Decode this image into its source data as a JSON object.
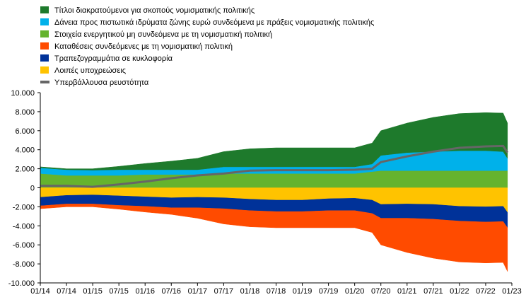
{
  "chart_data": {
    "type": "area",
    "stacked": true,
    "xlabel": "",
    "ylabel": "",
    "ylim": [
      -10000,
      10000
    ],
    "y_ticks": [
      10000,
      8000,
      6000,
      4000,
      2000,
      0,
      -2000,
      -4000,
      -6000,
      -8000,
      -10000
    ],
    "y_tick_labels": [
      "10.000",
      "8.000",
      "6.000",
      "4.000",
      "2.000",
      "0",
      "-2.000",
      "-4.000",
      "-6.000",
      "-8.000",
      "-10.000"
    ],
    "x_tick_labels": [
      "01/14",
      "07/14",
      "01/15",
      "07/15",
      "01/16",
      "07/16",
      "01/17",
      "07/17",
      "01/18",
      "07/18",
      "01/19",
      "07/19",
      "01/20",
      "07/20",
      "01/21",
      "07/21",
      "01/22",
      "07/22",
      "01/23"
    ],
    "grid": false,
    "legend_position": "top-left",
    "x": [
      "01/14",
      "07/14",
      "01/15",
      "07/15",
      "01/16",
      "07/16",
      "01/17",
      "07/17",
      "01/18",
      "07/18",
      "01/19",
      "07/19",
      "01/20",
      "05/20",
      "07/20",
      "01/21",
      "07/21",
      "01/22",
      "07/22",
      "11/22",
      "12/22"
    ],
    "series": [
      {
        "name": "Τίτλοι διακρατούμενοι για σκοπούς νομισματικής πολιτικής",
        "color": "#1e7a2c",
        "side": "asset",
        "values": [
          100,
          100,
          150,
          350,
          650,
          900,
          1200,
          1600,
          1900,
          2000,
          2000,
          2000,
          2000,
          2200,
          2600,
          3100,
          3600,
          3900,
          4000,
          4050,
          3700
        ]
      },
      {
        "name": "Δάνεια προς πιστωτικά ιδρύματα ζώνης ευρώ συνδεόμενα με πράξεις νομισματικής πολιτικής",
        "color": "#00b1ea",
        "side": "asset",
        "values": [
          600,
          600,
          550,
          600,
          500,
          500,
          500,
          700,
          700,
          700,
          700,
          700,
          700,
          800,
          1600,
          1900,
          2000,
          2100,
          2100,
          2000,
          1300
        ]
      },
      {
        "name": "Στοιχεία ενεργητικού μη συνδεόμενα με τη νομισματική πολιτική",
        "color": "#65b32e",
        "side": "asset",
        "values": [
          1500,
          1300,
          1300,
          1300,
          1400,
          1400,
          1400,
          1500,
          1500,
          1500,
          1500,
          1500,
          1500,
          1700,
          1800,
          1800,
          1800,
          1800,
          1800,
          1800,
          1800
        ]
      },
      {
        "name": "Καταθέσεις συνδεόμενες με τη νομισματική πολιτική",
        "color": "#ff4b00",
        "side": "liability",
        "values": [
          -300,
          -300,
          -300,
          -400,
          -600,
          -700,
          -1100,
          -1600,
          -1700,
          -1700,
          -1700,
          -1800,
          -1800,
          -2000,
          -2800,
          -3600,
          -4100,
          -4300,
          -4300,
          -4300,
          -4600
        ]
      },
      {
        "name": "Τραπεζογραμμάτια σε κυκλοφορία",
        "color": "#003299",
        "side": "liability",
        "values": [
          -900,
          -900,
          -950,
          -1000,
          -1000,
          -1050,
          -1100,
          -1150,
          -1200,
          -1200,
          -1200,
          -1250,
          -1300,
          -1400,
          -1450,
          -1500,
          -1550,
          -1550,
          -1600,
          -1600,
          -1600
        ]
      },
      {
        "name": "Λοιπές υποχρεώσεις",
        "color": "#ffc300",
        "side": "liability",
        "values": [
          -1000,
          -800,
          -750,
          -850,
          -950,
          -1050,
          -1000,
          -1050,
          -1200,
          -1300,
          -1300,
          -1150,
          -1100,
          -1300,
          -1750,
          -1700,
          -1750,
          -1950,
          -2000,
          -1950,
          -2600
        ]
      }
    ],
    "line_series": {
      "name": "Υπερβάλλουσα ρευστότητα",
      "color": "#666666",
      "values": [
        200,
        200,
        100,
        350,
        650,
        1000,
        1300,
        1500,
        1800,
        1850,
        1850,
        1850,
        1900,
        2000,
        2700,
        3300,
        3800,
        4200,
        4350,
        4400,
        3700
      ]
    }
  }
}
